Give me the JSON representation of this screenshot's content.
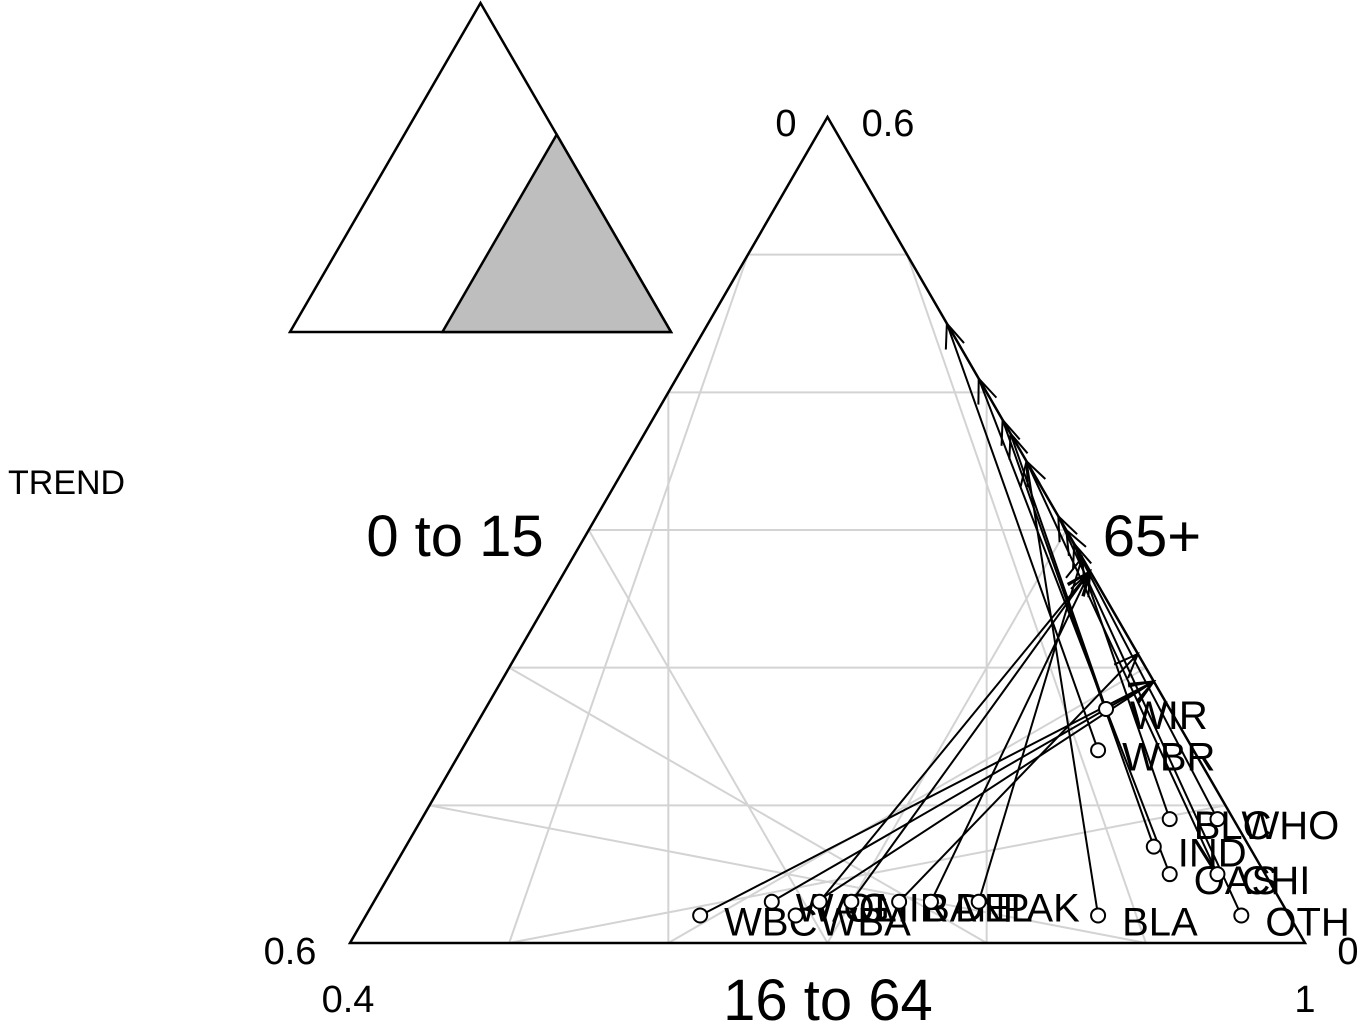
{
  "side_label": "TREND",
  "chart_data": {
    "type": "scatter",
    "subtype": "ternary-with-arrows",
    "axes": {
      "left": {
        "label": "0 to 15",
        "range": [
          0,
          0.6
        ],
        "tick_labels": [
          "0.6",
          "0"
        ]
      },
      "bottom": {
        "label": "16 to 64",
        "range": [
          0.4,
          1
        ],
        "tick_labels": [
          "0.4",
          "1"
        ]
      },
      "right": {
        "label": "65+",
        "range": [
          0,
          0.6
        ],
        "tick_labels": [
          "0.6",
          "0"
        ]
      }
    },
    "grid": true,
    "grid_color": "#d3d3d3",
    "inset": {
      "description_free": true,
      "full_triangle": true,
      "highlight_region": {
        "a_max": 0.6,
        "b_min": 0.4,
        "c_max": 0.6
      },
      "highlight_color": "#bebebe"
    },
    "points": [
      {
        "label": "WBC",
        "a": 0.37,
        "b": 0.61,
        "c": 0.02,
        "end": {
          "a": 0.0,
          "b": 0.81,
          "c": 0.19
        }
      },
      {
        "label": "WAG",
        "a": 0.32,
        "b": 0.65,
        "c": 0.03,
        "end": {
          "a": 0.0,
          "b": 0.81,
          "c": 0.19
        }
      },
      {
        "label": "WBA",
        "a": 0.31,
        "b": 0.67,
        "c": 0.02,
        "end": {
          "a": 0.0,
          "b": 0.81,
          "c": 0.19
        }
      },
      {
        "label": "OLI",
        "a": 0.29,
        "b": 0.68,
        "c": 0.03,
        "end": {
          "a": 0.0,
          "b": 0.73,
          "c": 0.27
        }
      },
      {
        "label": "MIR",
        "a": 0.27,
        "b": 0.7,
        "c": 0.03,
        "end": {
          "a": 0.0,
          "b": 0.73,
          "c": 0.27
        }
      },
      {
        "label": "BAN",
        "a": 0.24,
        "b": 0.73,
        "c": 0.03,
        "end": {
          "a": 0.0,
          "b": 0.79,
          "c": 0.21
        }
      },
      {
        "label": "DEL",
        "a": 0.22,
        "b": 0.75,
        "c": 0.03,
        "end": {
          "a": 0.0,
          "b": 0.73,
          "c": 0.27
        }
      },
      {
        "label": "PAK",
        "a": 0.19,
        "b": 0.78,
        "c": 0.03,
        "end": {
          "a": 0.0,
          "b": 0.72,
          "c": 0.28
        }
      },
      {
        "label": "BLA",
        "a": 0.12,
        "b": 0.86,
        "c": 0.02,
        "end": {
          "a": 0.0,
          "b": 0.65,
          "c": 0.35
        }
      },
      {
        "label": "IND",
        "a": 0.06,
        "b": 0.87,
        "c": 0.07,
        "end": {
          "a": 0.0,
          "b": 0.62,
          "c": 0.38
        }
      },
      {
        "label": "OAS",
        "a": 0.06,
        "b": 0.89,
        "c": 0.05,
        "end": {
          "a": 0.0,
          "b": 0.59,
          "c": 0.41
        }
      },
      {
        "label": "WBR",
        "a": 0.06,
        "b": 0.8,
        "c": 0.14,
        "end": {
          "a": 0.0,
          "b": 0.55,
          "c": 0.45
        }
      },
      {
        "label": "WIR",
        "a": 0.04,
        "b": 0.79,
        "c": 0.17,
        "end": {
          "a": 0.0,
          "b": 0.63,
          "c": 0.37
        }
      },
      {
        "label": "BLC",
        "a": 0.04,
        "b": 0.87,
        "c": 0.09,
        "end": {
          "a": 0.0,
          "b": 0.71,
          "c": 0.29
        }
      },
      {
        "label": "CHI",
        "a": 0.03,
        "b": 0.92,
        "c": 0.05,
        "end": {
          "a": 0.0,
          "b": 0.65,
          "c": 0.35
        }
      },
      {
        "label": "OTH",
        "a": 0.03,
        "b": 0.95,
        "c": 0.02,
        "end": {
          "a": 0.0,
          "b": 0.69,
          "c": 0.31
        }
      },
      {
        "label": "WHO",
        "a": 0.01,
        "b": 0.9,
        "c": 0.09,
        "end": {
          "a": 0.0,
          "b": 0.7,
          "c": 0.3
        }
      }
    ]
  }
}
